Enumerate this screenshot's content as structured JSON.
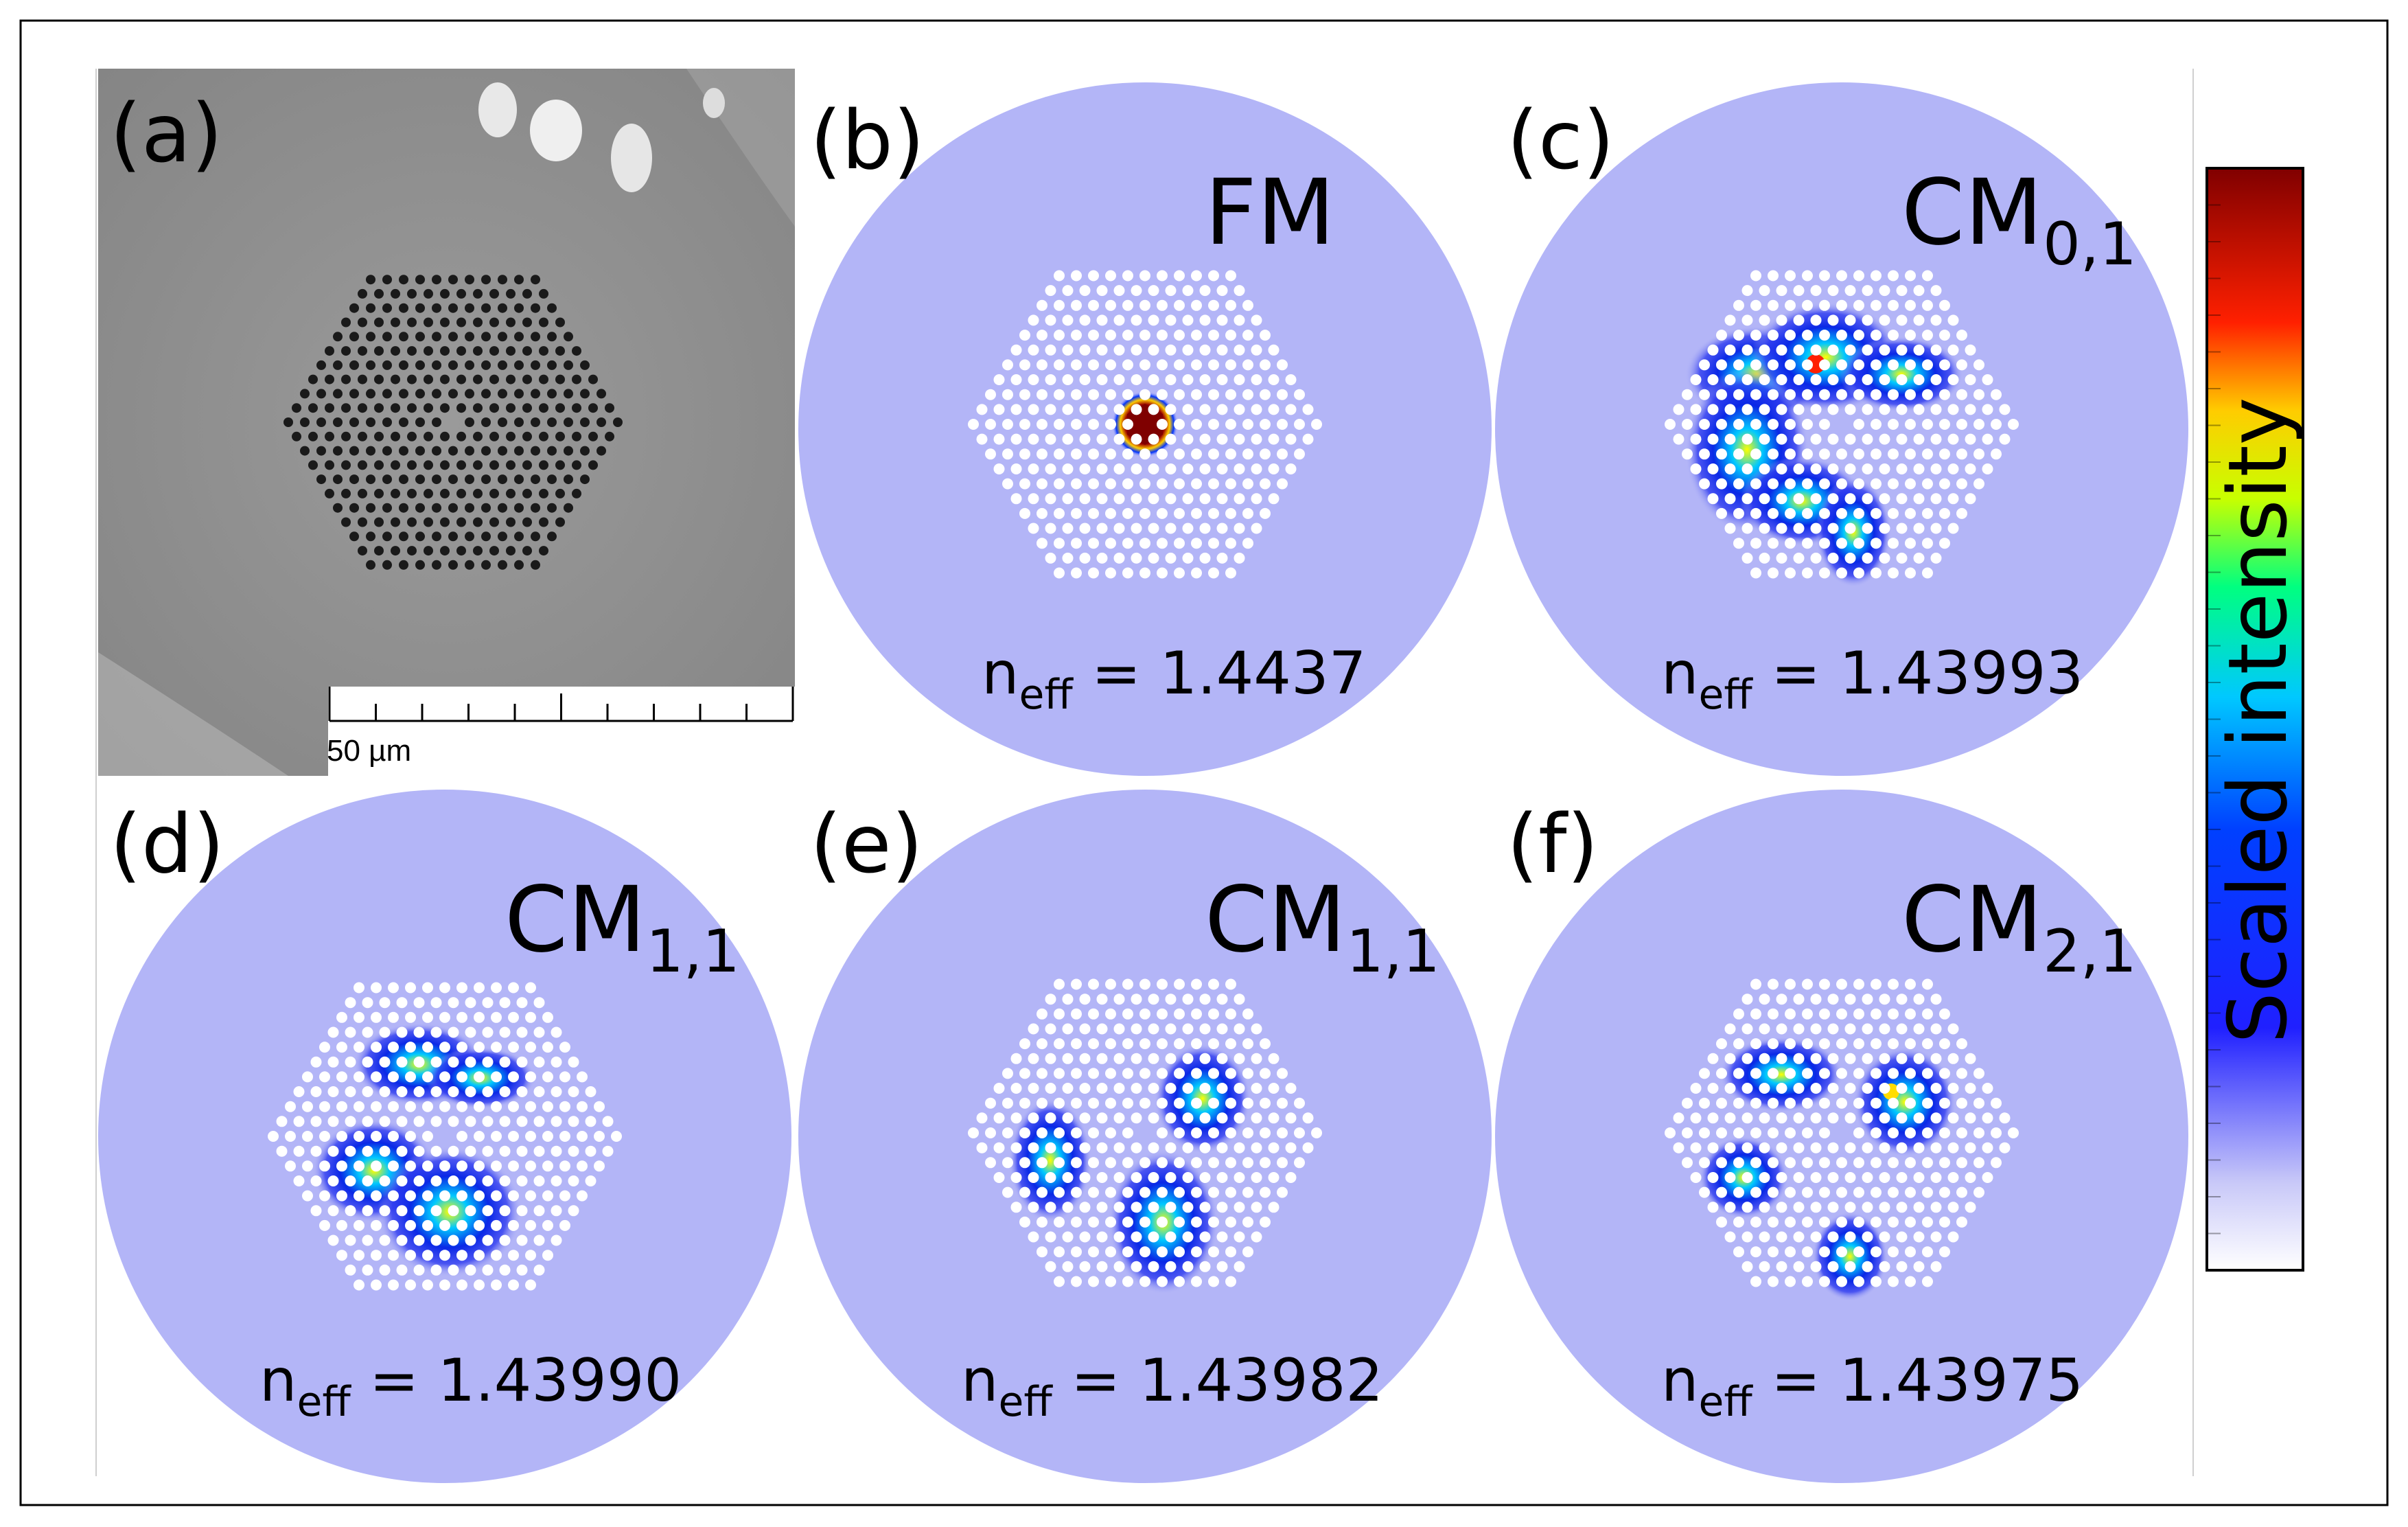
{
  "panels": [
    {
      "id": "a",
      "label": "(a)",
      "type": "sem",
      "scale_bar": "50 µm"
    },
    {
      "id": "b",
      "label": "(b)",
      "mode": "FM",
      "mode_sub": "",
      "neff_label": "n",
      "neff_sub": "eff",
      "neff_value": " = 1.4437"
    },
    {
      "id": "c",
      "label": "(c)",
      "mode": "CM",
      "mode_sub": "0,1",
      "neff_label": "n",
      "neff_sub": "eff",
      "neff_value": " = 1.43993"
    },
    {
      "id": "d",
      "label": "(d)",
      "mode": "CM",
      "mode_sub": "1,1",
      "neff_label": "n",
      "neff_sub": "eff",
      "neff_value": " = 1.43990"
    },
    {
      "id": "e",
      "label": "(e)",
      "mode": "CM",
      "mode_sub": "1,1",
      "neff_label": "n",
      "neff_sub": "eff",
      "neff_value": " = 1.43982"
    },
    {
      "id": "f",
      "label": "(f)",
      "mode": "CM",
      "mode_sub": "2,1",
      "neff_label": "n",
      "neff_sub": "eff",
      "neff_value": " = 1.43975"
    }
  ],
  "colorbar": {
    "title": "Scaled intensity",
    "colors": [
      "#ffffff",
      "#0000ff",
      "#00ffff",
      "#00ff00",
      "#ffff00",
      "#ff0000",
      "#800000"
    ]
  },
  "colors": {
    "cladding": "#b3b5f7",
    "hole": "#ffffff",
    "sem_bg": "#8e8e8e",
    "sem_hole": "#1a1a1a"
  }
}
